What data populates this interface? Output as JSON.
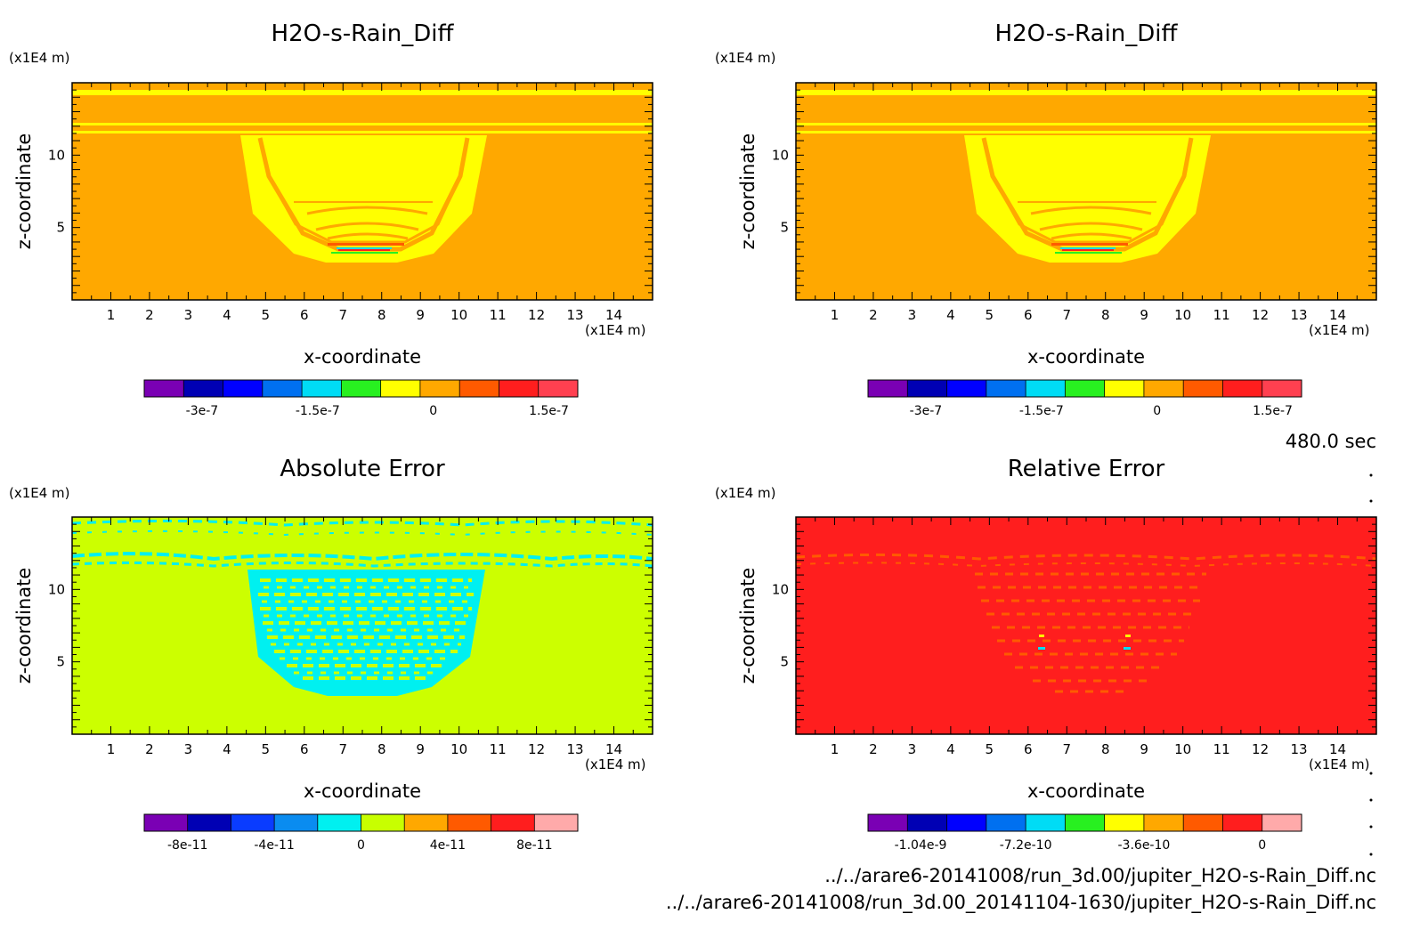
{
  "chart_data": [
    {
      "type": "heatmap",
      "title": "H2O-s-Rain_Diff",
      "xlabel": "x-coordinate",
      "ylabel": "z-coordinate",
      "x_unit": "(x1E4 m)",
      "y_unit": "(x1E4 m)",
      "xlim": [
        0,
        15
      ],
      "ylim": [
        0,
        15
      ],
      "x_ticks": [
        "1",
        "2",
        "3",
        "4",
        "5",
        "6",
        "7",
        "8",
        "9",
        "10",
        "11",
        "12",
        "13",
        "14"
      ],
      "y_ticks": [
        "5",
        "10"
      ],
      "colorbar": {
        "colors": [
          "#7a00b4",
          "#0000b4",
          "#0000ff",
          "#0070f0",
          "#00dcf5",
          "#28f020",
          "#ffff00",
          "#ffa800",
          "#ff5a00",
          "#ff1e1e",
          "#ff4050"
        ],
        "tick_labels": [
          "-3e-7",
          "-1.5e-7",
          "0",
          "1.5e-7"
        ],
        "tick_values": [
          -3e-07,
          -1.5e-07,
          0,
          1.5e-07
        ],
        "range": [
          -3.75e-07,
          1.875e-07
        ]
      }
    },
    {
      "type": "heatmap",
      "title": "H2O-s-Rain_Diff",
      "xlabel": "x-coordinate",
      "ylabel": "z-coordinate",
      "x_unit": "(x1E4 m)",
      "y_unit": "(x1E4 m)",
      "xlim": [
        0,
        15
      ],
      "ylim": [
        0,
        15
      ],
      "x_ticks": [
        "1",
        "2",
        "3",
        "4",
        "5",
        "6",
        "7",
        "8",
        "9",
        "10",
        "11",
        "12",
        "13",
        "14"
      ],
      "y_ticks": [
        "5",
        "10"
      ],
      "colorbar": {
        "colors": [
          "#7a00b4",
          "#0000b4",
          "#0000ff",
          "#0070f0",
          "#00dcf5",
          "#28f020",
          "#ffff00",
          "#ffa800",
          "#ff5a00",
          "#ff1e1e",
          "#ff4050"
        ],
        "tick_labels": [
          "-3e-7",
          "-1.5e-7",
          "0",
          "1.5e-7"
        ],
        "tick_values": [
          -3e-07,
          -1.5e-07,
          0,
          1.5e-07
        ],
        "range": [
          -3.75e-07,
          1.875e-07
        ]
      }
    },
    {
      "type": "heatmap",
      "title": "Absolute Error",
      "xlabel": "x-coordinate",
      "ylabel": "z-coordinate",
      "x_unit": "(x1E4 m)",
      "y_unit": "(x1E4 m)",
      "xlim": [
        0,
        15
      ],
      "ylim": [
        0,
        15
      ],
      "x_ticks": [
        "1",
        "2",
        "3",
        "4",
        "5",
        "6",
        "7",
        "8",
        "9",
        "10",
        "11",
        "12",
        "13",
        "14"
      ],
      "y_ticks": [
        "5",
        "10"
      ],
      "colorbar": {
        "colors": [
          "#7a00b4",
          "#0000b4",
          "#0a3cff",
          "#0a8cf0",
          "#00f0f0",
          "#c8ff00",
          "#ffa800",
          "#ff5a00",
          "#ff1e1e",
          "#ffaaaa"
        ],
        "tick_labels": [
          "-8e-11",
          "-4e-11",
          "0",
          "4e-11",
          "8e-11"
        ],
        "tick_values": [
          -8e-11,
          -4e-11,
          0,
          4e-11,
          8e-11
        ],
        "range": [
          -1e-10,
          1e-10
        ]
      }
    },
    {
      "type": "heatmap",
      "title": "Relative Error",
      "xlabel": "x-coordinate",
      "ylabel": "z-coordinate",
      "x_unit": "(x1E4 m)",
      "y_unit": "(x1E4 m)",
      "xlim": [
        0,
        15
      ],
      "ylim": [
        0,
        15
      ],
      "x_ticks": [
        "1",
        "2",
        "3",
        "4",
        "5",
        "6",
        "7",
        "8",
        "9",
        "10",
        "11",
        "12",
        "13",
        "14"
      ],
      "y_ticks": [
        "5",
        "10"
      ],
      "colorbar": {
        "colors": [
          "#7a00b4",
          "#0000b4",
          "#0000ff",
          "#0070f0",
          "#00dcf5",
          "#28f020",
          "#ffff00",
          "#ffa800",
          "#ff5a00",
          "#ff1e1e",
          "#ffaaaa"
        ],
        "tick_labels": [
          "-1.04e-9",
          "-7.2e-10",
          "-3.6e-10",
          "0"
        ],
        "tick_values": [
          -1.04e-09,
          -7.2e-10,
          -3.6e-10,
          0
        ],
        "range": [
          -1.2e-09,
          1.2e-10
        ]
      }
    }
  ],
  "info": {
    "time": "480.0 sec",
    "file1": "../../arare6-20141008/run_3d.00/jupiter_H2O-s-Rain_Diff.nc",
    "file2": "../../arare6-20141008/run_3d.00_20141104-1630/jupiter_H2O-s-Rain_Diff.nc"
  }
}
